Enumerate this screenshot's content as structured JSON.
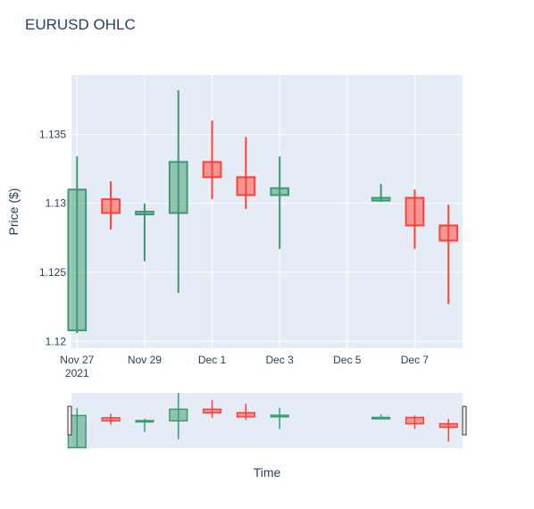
{
  "chart_data": {
    "type": "candlestick",
    "title": "EURUSD OHLC",
    "xlabel": "Time",
    "ylabel": "Price ($)",
    "ylim": [
      1.1195,
      1.1393
    ],
    "xlim": [
      "2021-11-26T20:00",
      "2021-12-08T10:00"
    ],
    "yticks": [
      1.12,
      1.125,
      1.13,
      1.135
    ],
    "ytick_labels": [
      "1.12",
      "1.125",
      "1.13",
      "1.135"
    ],
    "xticks": [
      {
        "date": "2021-11-27",
        "label": "Nov 27",
        "sublabel": "2021"
      },
      {
        "date": "2021-11-29",
        "label": "Nov 29",
        "sublabel": ""
      },
      {
        "date": "2021-12-01",
        "label": "Dec 1",
        "sublabel": ""
      },
      {
        "date": "2021-12-03",
        "label": "Dec 3",
        "sublabel": ""
      },
      {
        "date": "2021-12-05",
        "label": "Dec 5",
        "sublabel": ""
      },
      {
        "date": "2021-12-07",
        "label": "Dec 7",
        "sublabel": ""
      }
    ],
    "increasing_color": "#3D9970",
    "decreasing_color": "#FF4136",
    "grid": true,
    "rangeslider": true,
    "candles": [
      {
        "date": "2021-11-27",
        "open": 1.1208,
        "high": 1.1334,
        "low": 1.1206,
        "close": 1.131
      },
      {
        "date": "2021-11-28",
        "open": 1.1303,
        "high": 1.1316,
        "low": 1.1281,
        "close": 1.1293
      },
      {
        "date": "2021-11-29",
        "open": 1.1292,
        "high": 1.13,
        "low": 1.1258,
        "close": 1.1294
      },
      {
        "date": "2021-11-30",
        "open": 1.1293,
        "high": 1.1382,
        "low": 1.1235,
        "close": 1.133
      },
      {
        "date": "2021-12-01",
        "open": 1.133,
        "high": 1.136,
        "low": 1.1303,
        "close": 1.1319
      },
      {
        "date": "2021-12-02",
        "open": 1.1319,
        "high": 1.1348,
        "low": 1.1296,
        "close": 1.1306
      },
      {
        "date": "2021-12-03",
        "open": 1.1306,
        "high": 1.1334,
        "low": 1.1267,
        "close": 1.1311
      },
      {
        "date": "2021-12-06",
        "open": 1.1302,
        "high": 1.1314,
        "low": 1.1301,
        "close": 1.1304
      },
      {
        "date": "2021-12-07",
        "open": 1.1304,
        "high": 1.131,
        "low": 1.1267,
        "close": 1.1284
      },
      {
        "date": "2021-12-08",
        "open": 1.1284,
        "high": 1.1299,
        "low": 1.1227,
        "close": 1.1273
      }
    ]
  }
}
